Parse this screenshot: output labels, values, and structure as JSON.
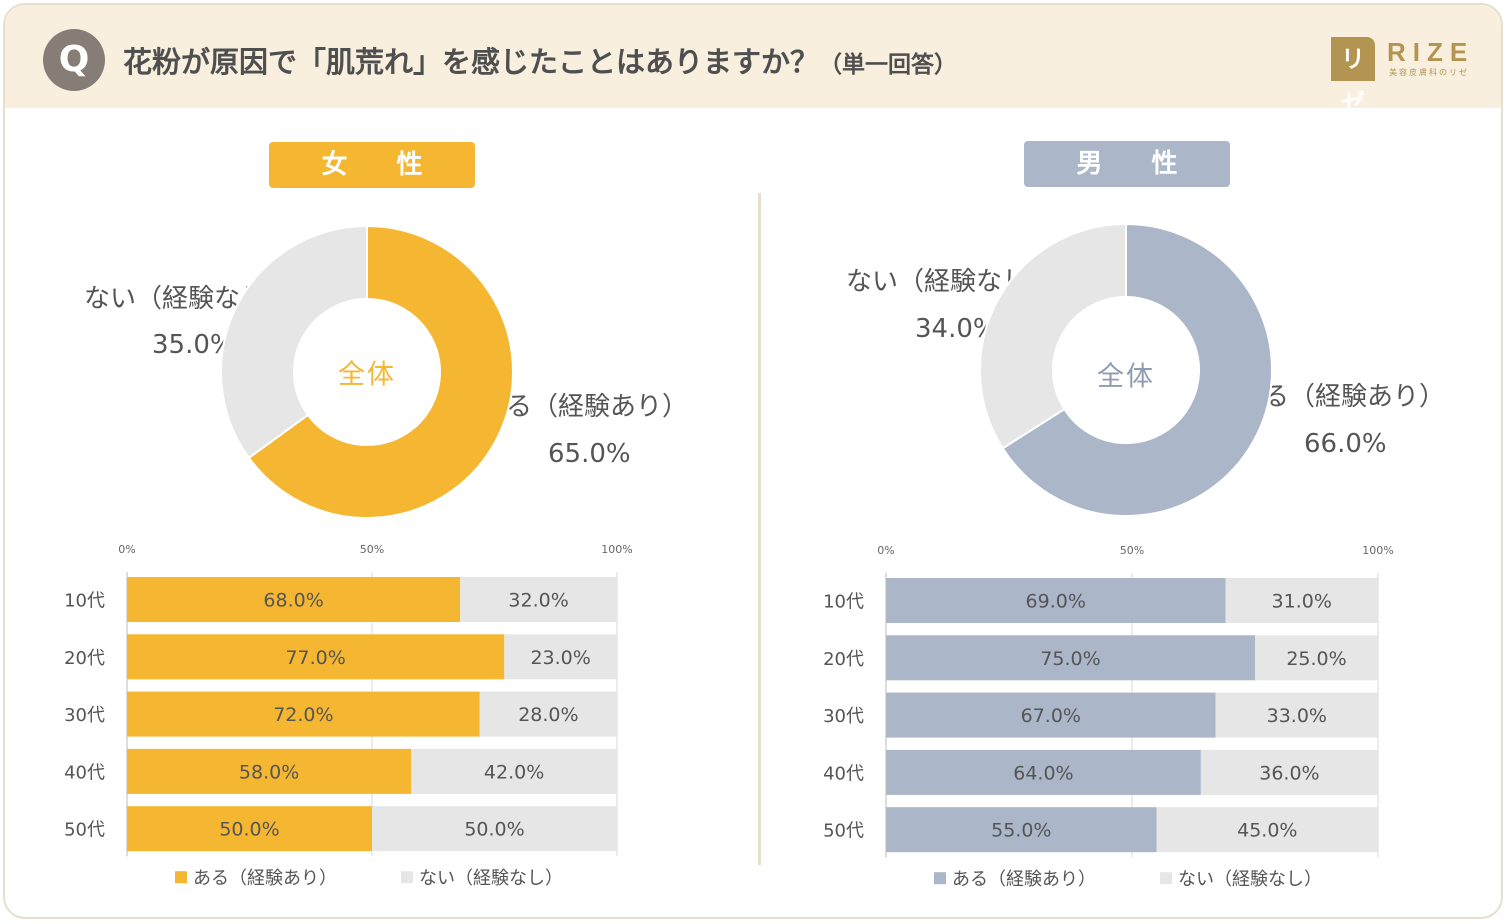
{
  "header": {
    "q_badge": "Q",
    "title": "花粉が原因で「肌荒れ」を感じたことはありますか？",
    "title_note": "（単一回答）",
    "logo": {
      "mark": "リゼ",
      "word": "RIZE",
      "sub": "美容皮膚科のリゼ"
    }
  },
  "colors": {
    "female": "#f5b731",
    "male": "#abb6c8",
    "no": "#e6e6e6",
    "text": "#555555",
    "header_bg": "#f8efdf"
  },
  "panels": [
    {
      "gender": "女 性",
      "center_label": "全体",
      "yes_label": "ある（経験あり）",
      "no_label": "ない（経験なし）",
      "yes_pct": "65.0%",
      "no_pct": "35.0%"
    },
    {
      "gender": "男 性",
      "center_label": "全体",
      "yes_label": "ある（経験あり）",
      "no_label": "ない（経験なし）",
      "yes_pct": "66.0%",
      "no_pct": "34.0%"
    }
  ],
  "chart_data": [
    {
      "type": "pie",
      "variant": "donut",
      "panel": "女性",
      "title": "全体",
      "labels": [
        "ある（経験あり）",
        "ない（経験なし）"
      ],
      "values": [
        65.0,
        35.0
      ],
      "colors": [
        "#f5b731",
        "#e6e6e6"
      ]
    },
    {
      "type": "bar",
      "orientation": "horizontal",
      "stacked": true,
      "panel": "女性",
      "categories": [
        "10代",
        "20代",
        "30代",
        "40代",
        "50代"
      ],
      "series": [
        {
          "name": "ある（経験あり）",
          "values": [
            68.0,
            77.0,
            72.0,
            58.0,
            50.0
          ],
          "color": "#f5b731"
        },
        {
          "name": "ない（経験なし）",
          "values": [
            32.0,
            23.0,
            28.0,
            42.0,
            50.0
          ],
          "color": "#e6e6e6"
        }
      ],
      "xlim": [
        0,
        100
      ],
      "xticks": [
        "0%",
        "50%",
        "100%"
      ],
      "grid": true,
      "legend": "bottom"
    },
    {
      "type": "pie",
      "variant": "donut",
      "panel": "男性",
      "title": "全体",
      "labels": [
        "ある（経験あり）",
        "ない（経験なし）"
      ],
      "values": [
        66.0,
        34.0
      ],
      "colors": [
        "#abb6c8",
        "#e6e6e6"
      ]
    },
    {
      "type": "bar",
      "orientation": "horizontal",
      "stacked": true,
      "panel": "男性",
      "categories": [
        "10代",
        "20代",
        "30代",
        "40代",
        "50代"
      ],
      "series": [
        {
          "name": "ある（経験あり）",
          "values": [
            69.0,
            75.0,
            67.0,
            64.0,
            55.0
          ],
          "color": "#abb6c8"
        },
        {
          "name": "ない（経験なし）",
          "values": [
            31.0,
            25.0,
            33.0,
            36.0,
            45.0
          ],
          "color": "#e6e6e6"
        }
      ],
      "xlim": [
        0,
        100
      ],
      "xticks": [
        "0%",
        "50%",
        "100%"
      ],
      "grid": true,
      "legend": "bottom"
    }
  ]
}
